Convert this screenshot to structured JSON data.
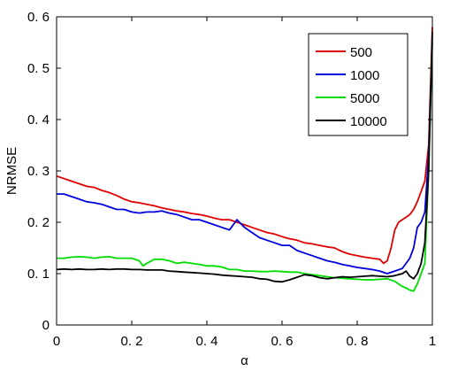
{
  "chart_data": {
    "type": "line",
    "xlabel": "α",
    "ylabel": "NRMSE",
    "xlim": [
      0,
      1
    ],
    "ylim": [
      0,
      0.6
    ],
    "xticks": [
      "0",
      "0. 2",
      "0. 4",
      "0. 6",
      "0. 8",
      "1"
    ],
    "xtick_values": [
      0,
      0.2,
      0.4,
      0.6,
      0.8,
      1.0
    ],
    "yticks": [
      "0",
      "0. 1",
      "0. 2",
      "0. 3",
      "0. 4",
      "0. 5",
      "0. 6"
    ],
    "ytick_values": [
      0,
      0.1,
      0.2,
      0.3,
      0.4,
      0.5,
      0.6
    ],
    "grid": false,
    "legend_position": "top-right",
    "series": [
      {
        "name": "500",
        "color": "#e00000",
        "points": [
          [
            0,
            0.29
          ],
          [
            0.02,
            0.285
          ],
          [
            0.04,
            0.28
          ],
          [
            0.06,
            0.275
          ],
          [
            0.08,
            0.27
          ],
          [
            0.1,
            0.268
          ],
          [
            0.12,
            0.262
          ],
          [
            0.14,
            0.258
          ],
          [
            0.16,
            0.252
          ],
          [
            0.18,
            0.245
          ],
          [
            0.2,
            0.24
          ],
          [
            0.22,
            0.238
          ],
          [
            0.24,
            0.235
          ],
          [
            0.26,
            0.232
          ],
          [
            0.28,
            0.228
          ],
          [
            0.3,
            0.225
          ],
          [
            0.32,
            0.222
          ],
          [
            0.34,
            0.22
          ],
          [
            0.36,
            0.217
          ],
          [
            0.38,
            0.215
          ],
          [
            0.4,
            0.212
          ],
          [
            0.42,
            0.208
          ],
          [
            0.44,
            0.205
          ],
          [
            0.46,
            0.205
          ],
          [
            0.48,
            0.2
          ],
          [
            0.5,
            0.195
          ],
          [
            0.52,
            0.19
          ],
          [
            0.54,
            0.185
          ],
          [
            0.56,
            0.18
          ],
          [
            0.58,
            0.177
          ],
          [
            0.6,
            0.172
          ],
          [
            0.62,
            0.168
          ],
          [
            0.64,
            0.165
          ],
          [
            0.66,
            0.16
          ],
          [
            0.68,
            0.158
          ],
          [
            0.7,
            0.155
          ],
          [
            0.72,
            0.152
          ],
          [
            0.74,
            0.15
          ],
          [
            0.76,
            0.143
          ],
          [
            0.78,
            0.138
          ],
          [
            0.8,
            0.135
          ],
          [
            0.82,
            0.132
          ],
          [
            0.84,
            0.13
          ],
          [
            0.86,
            0.128
          ],
          [
            0.87,
            0.12
          ],
          [
            0.88,
            0.125
          ],
          [
            0.89,
            0.15
          ],
          [
            0.9,
            0.185
          ],
          [
            0.91,
            0.2
          ],
          [
            0.92,
            0.205
          ],
          [
            0.93,
            0.21
          ],
          [
            0.94,
            0.215
          ],
          [
            0.95,
            0.225
          ],
          [
            0.96,
            0.24
          ],
          [
            0.97,
            0.26
          ],
          [
            0.98,
            0.28
          ],
          [
            0.99,
            0.35
          ],
          [
            1.0,
            0.58
          ]
        ]
      },
      {
        "name": "1000",
        "color": "#0000dd",
        "points": [
          [
            0,
            0.255
          ],
          [
            0.02,
            0.255
          ],
          [
            0.04,
            0.25
          ],
          [
            0.06,
            0.245
          ],
          [
            0.08,
            0.24
          ],
          [
            0.1,
            0.238
          ],
          [
            0.12,
            0.235
          ],
          [
            0.14,
            0.23
          ],
          [
            0.16,
            0.225
          ],
          [
            0.18,
            0.225
          ],
          [
            0.2,
            0.22
          ],
          [
            0.22,
            0.218
          ],
          [
            0.24,
            0.22
          ],
          [
            0.26,
            0.22
          ],
          [
            0.28,
            0.222
          ],
          [
            0.3,
            0.218
          ],
          [
            0.32,
            0.215
          ],
          [
            0.34,
            0.21
          ],
          [
            0.36,
            0.205
          ],
          [
            0.38,
            0.205
          ],
          [
            0.4,
            0.2
          ],
          [
            0.42,
            0.195
          ],
          [
            0.44,
            0.19
          ],
          [
            0.46,
            0.185
          ],
          [
            0.48,
            0.205
          ],
          [
            0.5,
            0.19
          ],
          [
            0.52,
            0.18
          ],
          [
            0.54,
            0.17
          ],
          [
            0.56,
            0.165
          ],
          [
            0.58,
            0.16
          ],
          [
            0.6,
            0.155
          ],
          [
            0.62,
            0.155
          ],
          [
            0.64,
            0.145
          ],
          [
            0.66,
            0.14
          ],
          [
            0.68,
            0.135
          ],
          [
            0.7,
            0.13
          ],
          [
            0.72,
            0.125
          ],
          [
            0.74,
            0.122
          ],
          [
            0.76,
            0.118
          ],
          [
            0.78,
            0.115
          ],
          [
            0.8,
            0.112
          ],
          [
            0.82,
            0.11
          ],
          [
            0.84,
            0.108
          ],
          [
            0.86,
            0.105
          ],
          [
            0.88,
            0.1
          ],
          [
            0.9,
            0.105
          ],
          [
            0.92,
            0.11
          ],
          [
            0.93,
            0.12
          ],
          [
            0.94,
            0.13
          ],
          [
            0.95,
            0.15
          ],
          [
            0.96,
            0.19
          ],
          [
            0.97,
            0.2
          ],
          [
            0.98,
            0.22
          ],
          [
            0.99,
            0.33
          ],
          [
            1.0,
            0.55
          ]
        ]
      },
      {
        "name": "5000",
        "color": "#00dd00",
        "points": [
          [
            0,
            0.13
          ],
          [
            0.02,
            0.13
          ],
          [
            0.04,
            0.132
          ],
          [
            0.06,
            0.133
          ],
          [
            0.08,
            0.132
          ],
          [
            0.1,
            0.13
          ],
          [
            0.12,
            0.132
          ],
          [
            0.14,
            0.133
          ],
          [
            0.16,
            0.13
          ],
          [
            0.18,
            0.13
          ],
          [
            0.2,
            0.13
          ],
          [
            0.22,
            0.125
          ],
          [
            0.23,
            0.115
          ],
          [
            0.24,
            0.12
          ],
          [
            0.26,
            0.128
          ],
          [
            0.28,
            0.128
          ],
          [
            0.3,
            0.125
          ],
          [
            0.32,
            0.12
          ],
          [
            0.34,
            0.122
          ],
          [
            0.36,
            0.12
          ],
          [
            0.38,
            0.118
          ],
          [
            0.4,
            0.115
          ],
          [
            0.42,
            0.115
          ],
          [
            0.44,
            0.113
          ],
          [
            0.46,
            0.108
          ],
          [
            0.48,
            0.108
          ],
          [
            0.5,
            0.105
          ],
          [
            0.52,
            0.105
          ],
          [
            0.54,
            0.104
          ],
          [
            0.56,
            0.104
          ],
          [
            0.58,
            0.105
          ],
          [
            0.6,
            0.104
          ],
          [
            0.62,
            0.103
          ],
          [
            0.64,
            0.103
          ],
          [
            0.66,
            0.1
          ],
          [
            0.68,
            0.098
          ],
          [
            0.7,
            0.096
          ],
          [
            0.72,
            0.094
          ],
          [
            0.74,
            0.092
          ],
          [
            0.76,
            0.091
          ],
          [
            0.78,
            0.09
          ],
          [
            0.8,
            0.089
          ],
          [
            0.82,
            0.088
          ],
          [
            0.84,
            0.088
          ],
          [
            0.86,
            0.089
          ],
          [
            0.88,
            0.09
          ],
          [
            0.9,
            0.085
          ],
          [
            0.92,
            0.075
          ],
          [
            0.93,
            0.072
          ],
          [
            0.94,
            0.068
          ],
          [
            0.95,
            0.066
          ],
          [
            0.96,
            0.08
          ],
          [
            0.97,
            0.1
          ],
          [
            0.98,
            0.12
          ],
          [
            0.99,
            0.3
          ],
          [
            1.0,
            0.56
          ]
        ]
      },
      {
        "name": "10000",
        "color": "#000000",
        "points": [
          [
            0,
            0.108
          ],
          [
            0.02,
            0.109
          ],
          [
            0.04,
            0.108
          ],
          [
            0.06,
            0.109
          ],
          [
            0.08,
            0.108
          ],
          [
            0.1,
            0.108
          ],
          [
            0.12,
            0.109
          ],
          [
            0.14,
            0.108
          ],
          [
            0.16,
            0.109
          ],
          [
            0.18,
            0.109
          ],
          [
            0.2,
            0.108
          ],
          [
            0.22,
            0.108
          ],
          [
            0.24,
            0.107
          ],
          [
            0.26,
            0.107
          ],
          [
            0.28,
            0.107
          ],
          [
            0.3,
            0.105
          ],
          [
            0.32,
            0.104
          ],
          [
            0.34,
            0.103
          ],
          [
            0.36,
            0.102
          ],
          [
            0.38,
            0.101
          ],
          [
            0.4,
            0.1
          ],
          [
            0.42,
            0.099
          ],
          [
            0.44,
            0.097
          ],
          [
            0.46,
            0.096
          ],
          [
            0.48,
            0.095
          ],
          [
            0.5,
            0.094
          ],
          [
            0.52,
            0.093
          ],
          [
            0.54,
            0.09
          ],
          [
            0.56,
            0.089
          ],
          [
            0.58,
            0.085
          ],
          [
            0.6,
            0.084
          ],
          [
            0.62,
            0.088
          ],
          [
            0.64,
            0.093
          ],
          [
            0.66,
            0.098
          ],
          [
            0.68,
            0.096
          ],
          [
            0.7,
            0.092
          ],
          [
            0.72,
            0.09
          ],
          [
            0.74,
            0.092
          ],
          [
            0.76,
            0.094
          ],
          [
            0.78,
            0.093
          ],
          [
            0.8,
            0.094
          ],
          [
            0.82,
            0.095
          ],
          [
            0.84,
            0.096
          ],
          [
            0.86,
            0.095
          ],
          [
            0.88,
            0.094
          ],
          [
            0.9,
            0.096
          ],
          [
            0.92,
            0.1
          ],
          [
            0.93,
            0.105
          ],
          [
            0.94,
            0.095
          ],
          [
            0.95,
            0.09
          ],
          [
            0.96,
            0.1
          ],
          [
            0.97,
            0.12
          ],
          [
            0.98,
            0.16
          ],
          [
            0.99,
            0.3
          ],
          [
            1.0,
            0.57
          ]
        ]
      }
    ]
  }
}
